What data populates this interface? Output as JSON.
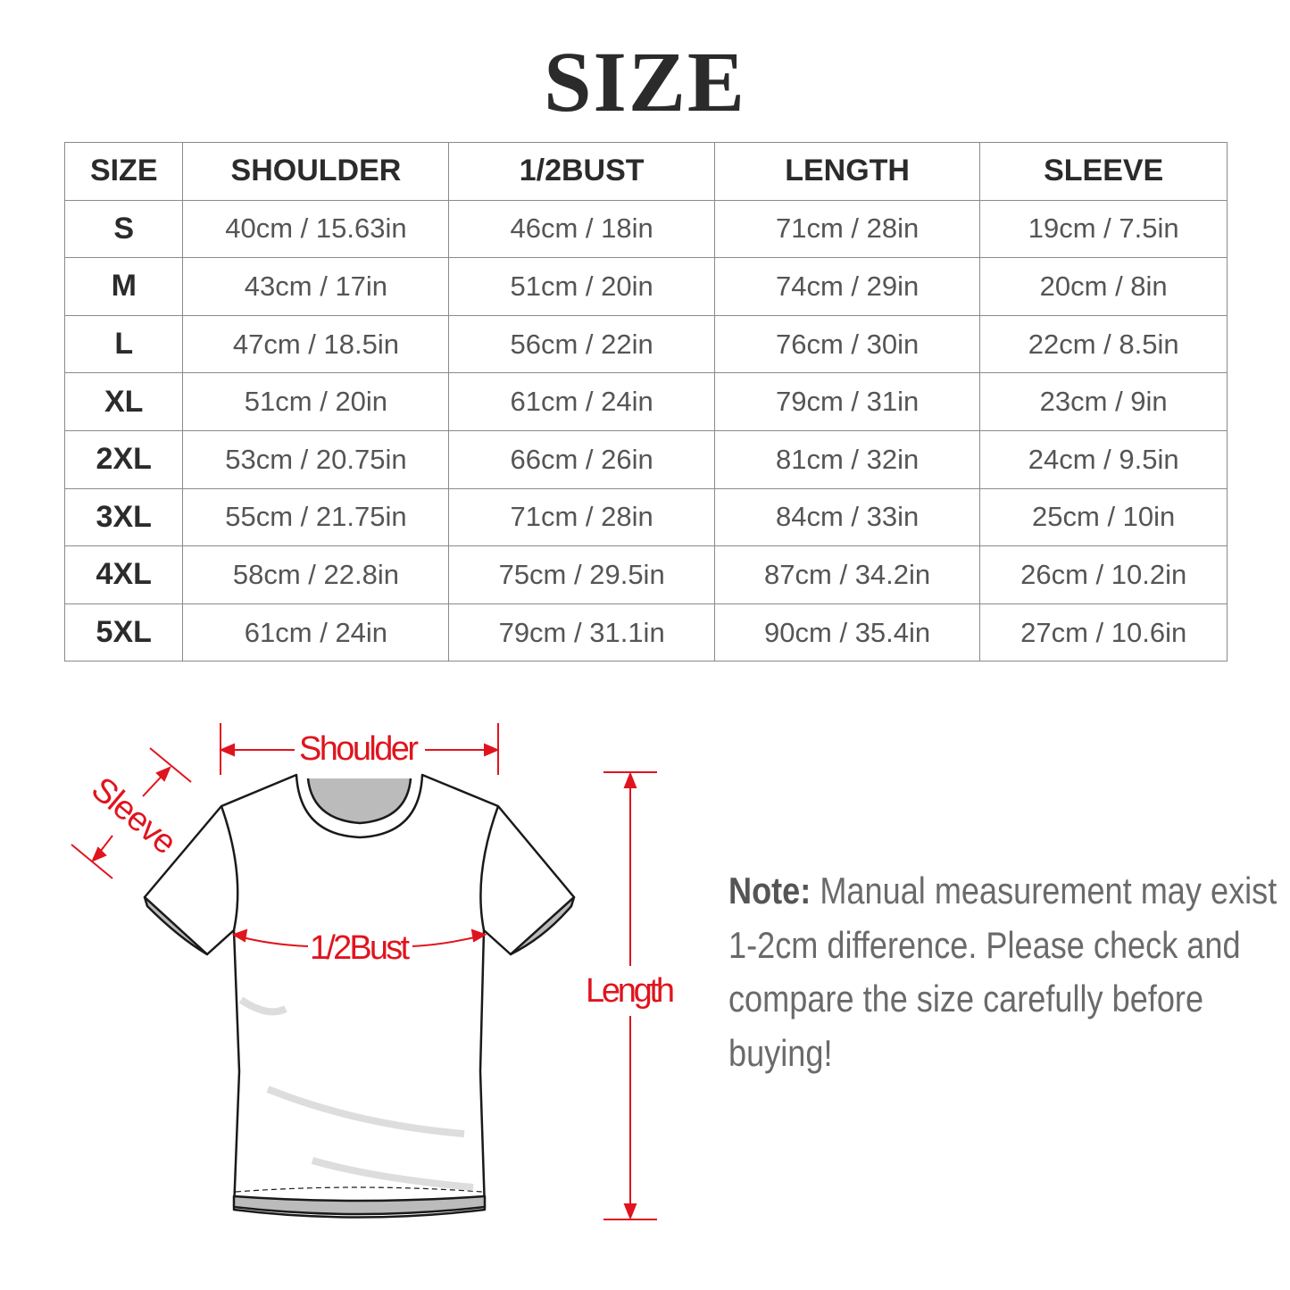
{
  "title": "SIZE",
  "table": {
    "headers": [
      "SIZE",
      "SHOULDER",
      "1/2BUST",
      "LENGTH",
      "SLEEVE"
    ],
    "rows": [
      [
        "S",
        "40cm / 15.63in",
        "46cm / 18in",
        "71cm / 28in",
        "19cm / 7.5in"
      ],
      [
        "M",
        "43cm / 17in",
        "51cm / 20in",
        "74cm / 29in",
        "20cm / 8in"
      ],
      [
        "L",
        "47cm / 18.5in",
        "56cm / 22in",
        "76cm / 30in",
        "22cm / 8.5in"
      ],
      [
        "XL",
        "51cm / 20in",
        "61cm / 24in",
        "79cm / 31in",
        "23cm / 9in"
      ],
      [
        "2XL",
        "53cm / 20.75in",
        "66cm / 26in",
        "81cm / 32in",
        "24cm / 9.5in"
      ],
      [
        "3XL",
        "55cm / 21.75in",
        "71cm / 28in",
        "84cm / 33in",
        "25cm / 10in"
      ],
      [
        "4XL",
        "58cm / 22.8in",
        "75cm / 29.5in",
        "87cm / 34.2in",
        "26cm / 10.2in"
      ],
      [
        "5XL",
        "61cm / 24in",
        "79cm / 31.1in",
        "90cm / 35.4in",
        "27cm / 10.6in"
      ]
    ]
  },
  "diagram": {
    "shoulder": "Shoulder",
    "sleeve": "Sleeve",
    "bust": "1/2Bust",
    "length": "Length",
    "accent_color": "#e0141e"
  },
  "note": {
    "label": "Note:",
    "text": " Manual measurement may exist 1-2cm difference. Please check and compare the size carefully before buying!"
  }
}
